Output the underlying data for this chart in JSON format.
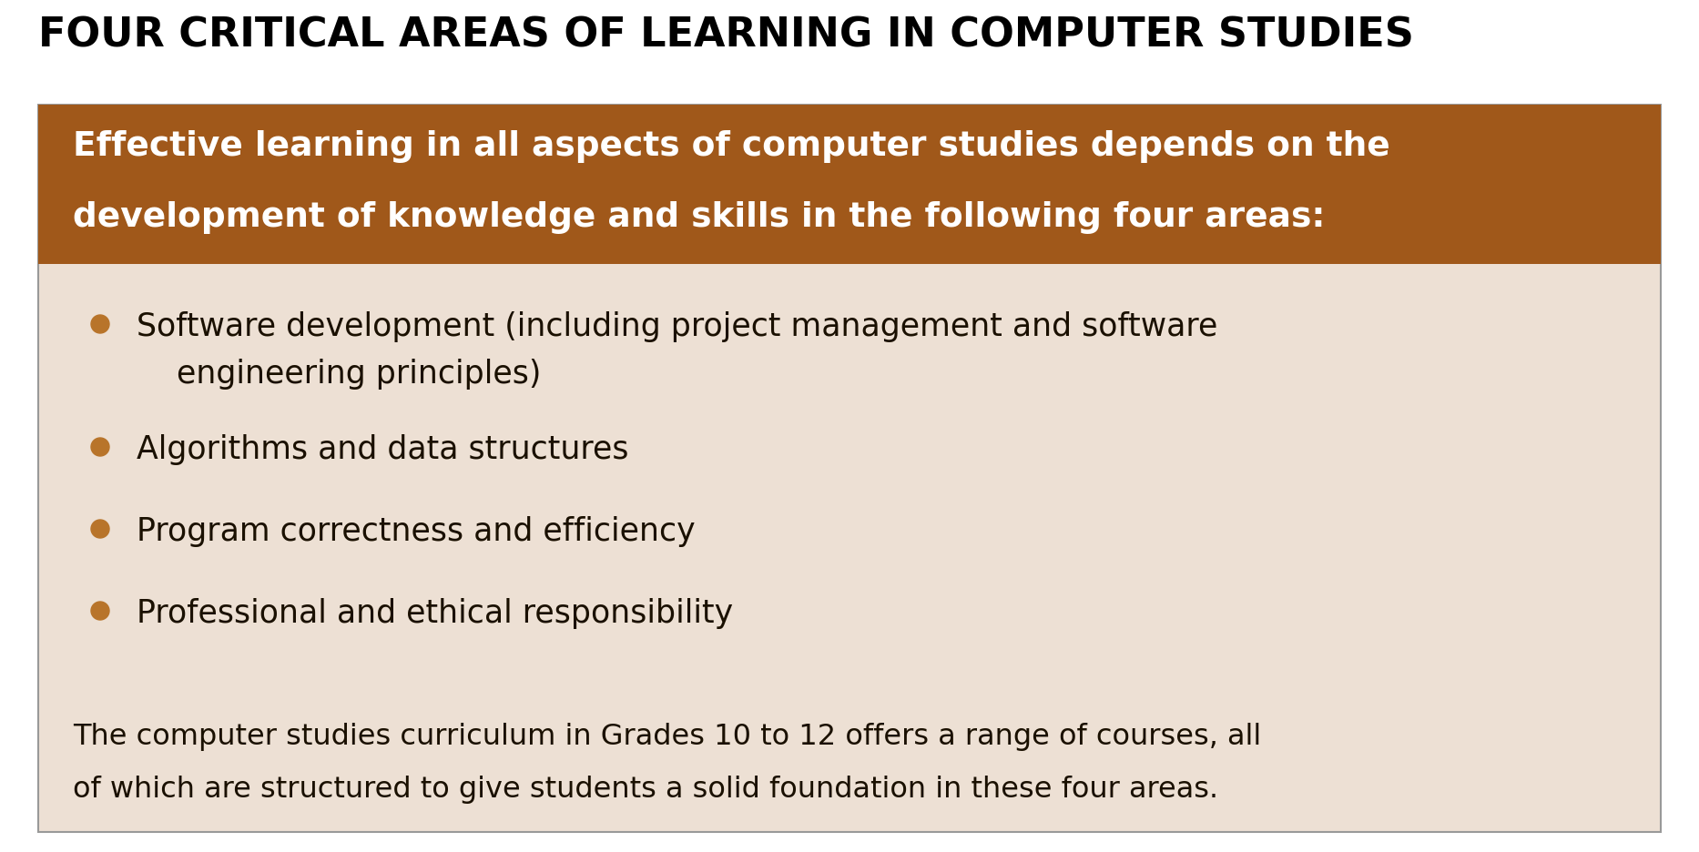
{
  "title": "FOUR CRITICAL AREAS OF LEARNING IN COMPUTER STUDIES",
  "title_color": "#000000",
  "title_fontsize": 32,
  "header_text_line1": "Effective learning in all aspects of computer studies depends on the",
  "header_text_line2": "development of knowledge and skills in the following four areas:",
  "header_bg_color": "#A0581A",
  "header_text_color": "#FFFFFF",
  "header_fontsize": 27,
  "body_bg_color": "#EDE0D4",
  "outer_bg_color": "#FFFFFF",
  "border_color": "#999999",
  "bullet_color": "#B8742A",
  "bullet_items_line1": [
    "Software development (including project management and software",
    "Algorithms and data structures",
    "Program correctness and efficiency",
    "Professional and ethical responsibility"
  ],
  "bullet_items_line2": [
    "    engineering principles)",
    "",
    "",
    ""
  ],
  "bullet_fontsize": 25,
  "bullet_text_color": "#1A1000",
  "footer_text_line1": "The computer studies curriculum in Grades 10 to 12 offers a range of courses, all",
  "footer_text_line2": "of which are structured to give students a solid foundation in these four areas.",
  "footer_fontsize": 23,
  "footer_text_color": "#1A1000"
}
